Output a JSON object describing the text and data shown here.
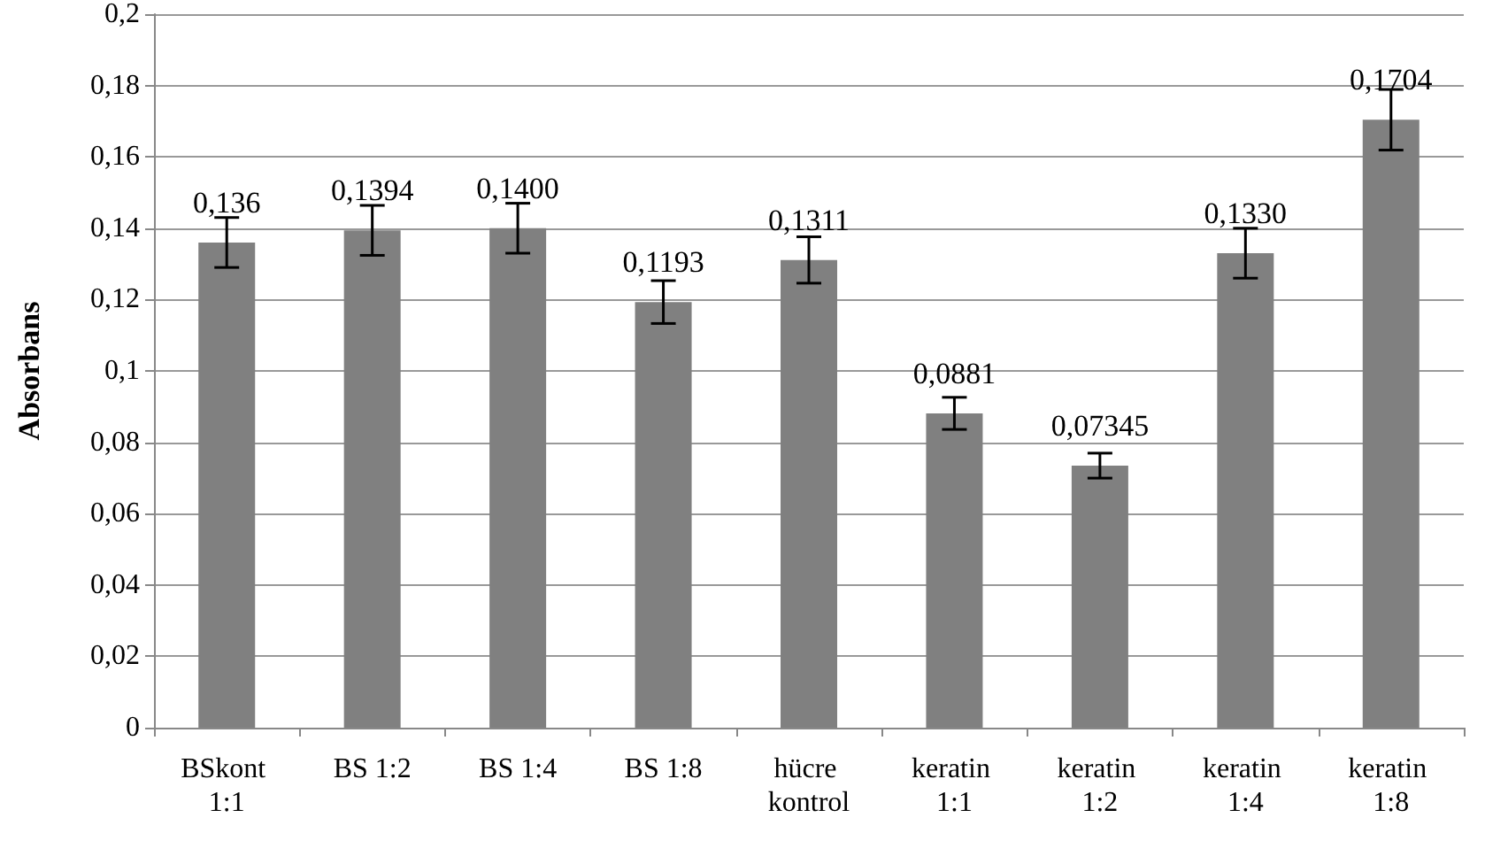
{
  "chart_data": {
    "type": "bar",
    "ylabel": "Absorbans",
    "categories": [
      "BSkont 1:1",
      "BS 1:2",
      "BS 1:4",
      "BS 1:8",
      "hücre kontrol",
      "keratin 1:1",
      "keratin 1:2",
      "keratin 1:4",
      "keratin 1:8"
    ],
    "values": [
      0.136,
      0.1394,
      0.14,
      0.1193,
      0.1311,
      0.0881,
      0.07345,
      0.133,
      0.1704
    ],
    "value_labels": [
      "0,136",
      "0,1394",
      "0,1400",
      "0,1193",
      "0,1311",
      "0,0881",
      "0,07345",
      "0,1330",
      "0,1704"
    ],
    "errors": [
      0.007,
      0.007,
      0.007,
      0.006,
      0.0065,
      0.0045,
      0.0035,
      0.007,
      0.0085
    ],
    "color": "#808080",
    "ylim": [
      0,
      0.2
    ],
    "yticks": [
      {
        "value": 0,
        "label": "0"
      },
      {
        "value": 0.02,
        "label": "0,02"
      },
      {
        "value": 0.04,
        "label": "0,04"
      },
      {
        "value": 0.06,
        "label": "0,06"
      },
      {
        "value": 0.08,
        "label": "0,08"
      },
      {
        "value": 0.1,
        "label": "0,1"
      },
      {
        "value": 0.12,
        "label": "0,12"
      },
      {
        "value": 0.14,
        "label": "0,14"
      },
      {
        "value": 0.16,
        "label": "0,16"
      },
      {
        "value": 0.18,
        "label": "0,18"
      },
      {
        "value": 0.2,
        "label": "0,2"
      }
    ],
    "grid": "y"
  }
}
